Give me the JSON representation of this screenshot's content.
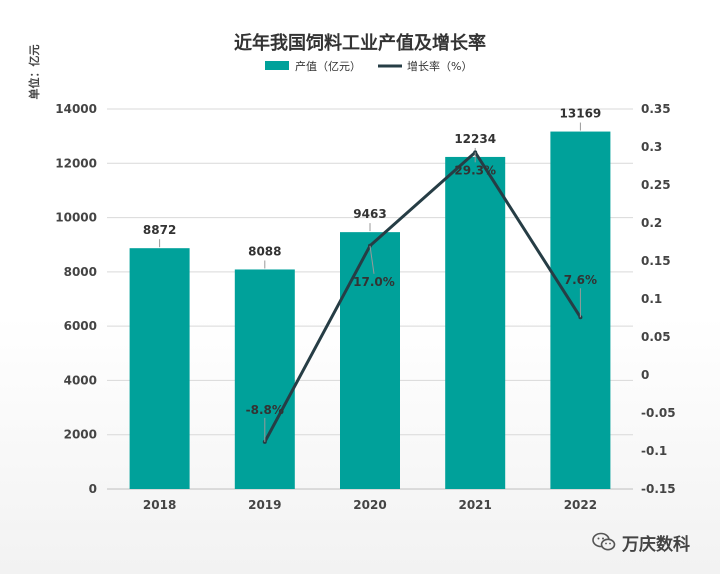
{
  "chart_data": {
    "type": "bar",
    "title": "近年我国饲料工业产值及增长率",
    "unit_label": "单位：亿元",
    "categories": [
      "2018",
      "2019",
      "2020",
      "2021",
      "2022"
    ],
    "series": [
      {
        "name": "产值（亿元）",
        "kind": "bar",
        "axis": "left",
        "values": [
          8872,
          8088,
          9463,
          12234,
          13169
        ],
        "labels": [
          "8872",
          "8088",
          "9463",
          "12234",
          "13169"
        ],
        "color": "#00a19a"
      },
      {
        "name": "增长率（%）",
        "kind": "line",
        "axis": "right",
        "values": [
          null,
          -0.088,
          0.17,
          0.293,
          0.076
        ],
        "labels": [
          "",
          "-8.8%",
          "17.0%",
          "29.3%",
          "7.6%"
        ],
        "color": "#263d45"
      }
    ],
    "y_left": {
      "min": 0,
      "max": 14000,
      "ticks": [
        "0",
        "2000",
        "4000",
        "6000",
        "8000",
        "10000",
        "12000",
        "14000"
      ]
    },
    "y_right": {
      "min": -0.15,
      "max": 0.35,
      "ticks": [
        "-0.15",
        "-0.1",
        "-0.05",
        "0",
        "0.05",
        "0.1",
        "0.15",
        "0.2",
        "0.25",
        "0.3",
        "0.35"
      ]
    },
    "grid": true,
    "legend_position": "top-center"
  },
  "watermark": {
    "text": "万庆数科",
    "icon": "wechat-icon"
  }
}
